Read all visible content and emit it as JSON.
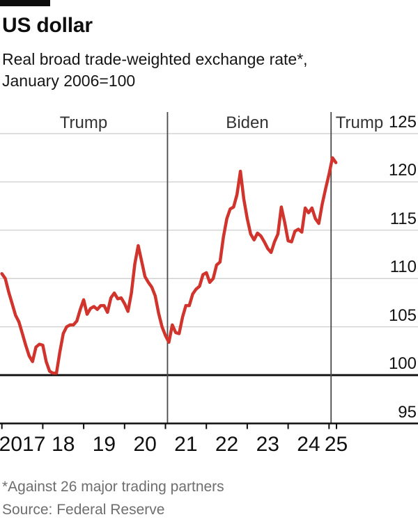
{
  "header": {
    "title": "US dollar",
    "subtitle_line1": "Real broad trade-weighted exchange rate*,",
    "subtitle_line2": "January 2006=100"
  },
  "footnotes": {
    "note": "*Against 26 major trading partners",
    "source": "Source: Federal Reserve"
  },
  "colors": {
    "line_red": "#d0342c",
    "axis_black": "#0d0d0d",
    "grid_gray": "#c9c9c9",
    "divider_gray": "#4a4a4a",
    "brand_tag": "#0d0d0d",
    "footnote_gray": "#6e6e6e"
  },
  "chart_data": {
    "type": "line",
    "title": "US dollar",
    "subtitle": "Real broad trade-weighted exchange rate*, January 2006=100",
    "frequency": "monthly",
    "x_start": "2016-12",
    "x_end": "2025-02",
    "x_tick_labels": [
      "2017",
      "18",
      "19",
      "20",
      "21",
      "22",
      "23",
      "24",
      "25"
    ],
    "y_ticks": [
      125,
      120,
      115,
      110,
      105,
      100,
      95
    ],
    "ylim": [
      95,
      125
    ],
    "y_axis_side": "right",
    "grid": "horizontal",
    "emphasized_baseline": 100,
    "period_labels": [
      "Trump",
      "Biden",
      "Trump"
    ],
    "dividers_x_year": [
      2021.05,
      2025.05
    ],
    "series": [
      {
        "name": "Real broad trade-weighted exchange rate, January 2006=100",
        "color": "#d0342c",
        "values": [
          110.5,
          110.0,
          108.6,
          107.4,
          106.2,
          105.5,
          104.3,
          103.1,
          102.0,
          101.4,
          102.9,
          103.2,
          103.1,
          101.4,
          100.4,
          100.2,
          100.2,
          102.4,
          104.3,
          105.0,
          105.2,
          105.2,
          105.6,
          106.8,
          107.8,
          106.3,
          106.9,
          107.1,
          106.8,
          107.2,
          107.2,
          106.5,
          108.0,
          108.5,
          107.9,
          108.0,
          107.4,
          106.6,
          108.5,
          111.5,
          113.4,
          111.8,
          110.2,
          109.6,
          109.1,
          108.2,
          106.4,
          105.0,
          104.1,
          103.4,
          105.2,
          104.4,
          104.3,
          106.0,
          107.2,
          107.2,
          108.4,
          108.9,
          109.2,
          110.4,
          110.6,
          109.6,
          110.0,
          111.4,
          111.7,
          114.3,
          116.2,
          117.2,
          117.4,
          118.7,
          121.1,
          118.2,
          116.2,
          114.6,
          114.0,
          114.7,
          114.4,
          113.8,
          113.1,
          112.7,
          113.8,
          114.6,
          117.4,
          115.8,
          113.9,
          113.8,
          114.9,
          115.1,
          114.8,
          117.3,
          116.8,
          117.3,
          116.2,
          115.7,
          117.7,
          119.3,
          120.8,
          122.5,
          122.0
        ]
      }
    ]
  }
}
